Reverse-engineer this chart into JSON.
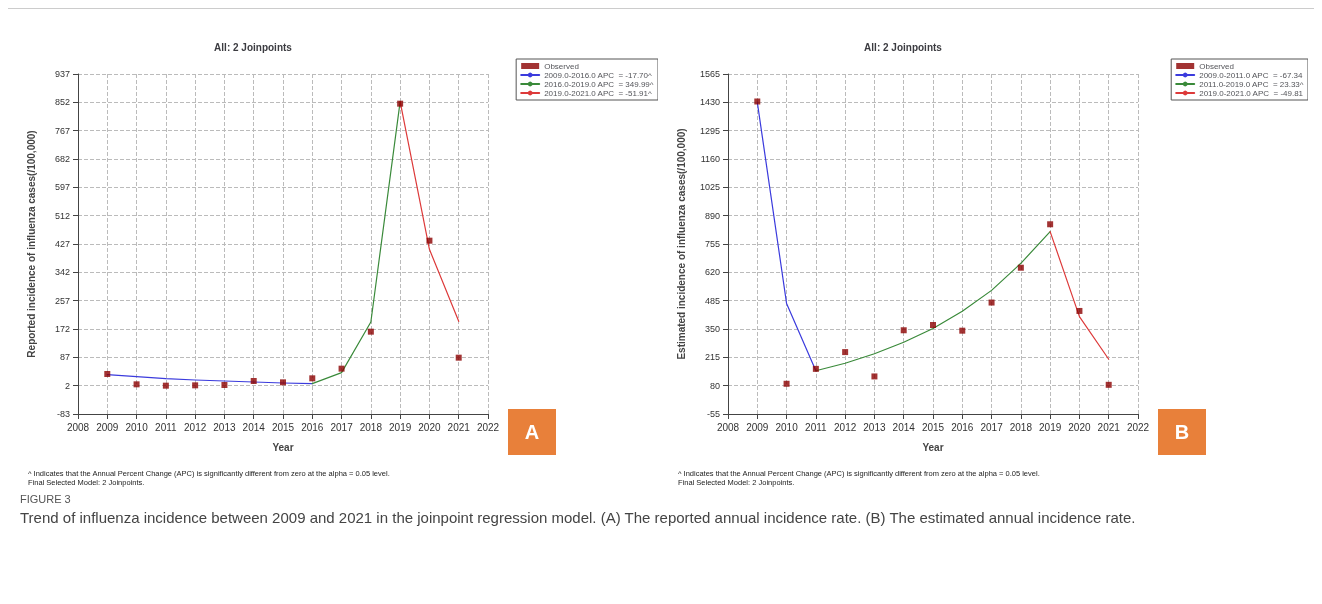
{
  "chart_data": [
    {
      "type": "line",
      "title": "All: 2 Joinpoints",
      "xlabel": "Year",
      "ylabel": "Reported incidence of influenza cases(/100,000)",
      "xlim": [
        2008,
        2022
      ],
      "xticks": [
        2008,
        2009,
        2010,
        2011,
        2012,
        2013,
        2014,
        2015,
        2016,
        2017,
        2018,
        2019,
        2020,
        2021,
        2022
      ],
      "ylim": [
        -83,
        937
      ],
      "yticks": [
        -83,
        2,
        87,
        172,
        257,
        342,
        427,
        512,
        597,
        682,
        767,
        852,
        937
      ],
      "grid": true,
      "legend": "top right",
      "series": [
        {
          "name": "Observed",
          "type": "scatter",
          "marker": "square",
          "color": "#8b0000",
          "x": [
            2009,
            2010,
            2011,
            2012,
            2013,
            2014,
            2015,
            2016,
            2017,
            2018,
            2019,
            2020,
            2021
          ],
          "values": [
            37,
            6,
            2,
            3,
            4,
            16,
            12,
            24,
            53,
            164,
            848,
            437,
            86
          ]
        },
        {
          "name": "2009.0-2016.0 APC  = -17.70^",
          "marker": "none",
          "color": "#3b3bdd",
          "x": [
            2009,
            2010,
            2011,
            2012,
            2013,
            2014,
            2015,
            2016
          ],
          "values": [
            35,
            29,
            23,
            19,
            16,
            13,
            10,
            8
          ]
        },
        {
          "name": "2016.0-2019.0 APC  = 349.99^",
          "marker": "none",
          "color": "#3a8a3a",
          "x": [
            2016,
            2017,
            2018,
            2019
          ],
          "values": [
            8,
            41,
            193,
            854
          ]
        },
        {
          "name": "2019.0-2021.0 APC  = -51.91^",
          "marker": "none",
          "color": "#dd3a3a",
          "x": [
            2019,
            2020,
            2021
          ],
          "values": [
            854,
            411,
            195
          ]
        }
      ],
      "annotations": [
        "A",
        "^ Indicates that the Annual Percent Change (APC) is significantly different from zero at the alpha = 0.05 level.",
        "Final Selected Model: 2 Joinpoints.",
        "FIGURE 3",
        "Trend of influenza incidence between 2009 and 2021 in the joinpoint regression model. (A) The reported annual incidence rate. (B) The estimated annual incidence rate."
      ]
    },
    {
      "type": "line",
      "title": "All: 2 Joinpoints",
      "xlabel": "Year",
      "ylabel": "Estimated incidence of influenza cases(/100,000)",
      "xlim": [
        2008,
        2022
      ],
      "xticks": [
        2008,
        2009,
        2010,
        2011,
        2012,
        2013,
        2014,
        2015,
        2016,
        2017,
        2018,
        2019,
        2020,
        2021,
        2022
      ],
      "ylim": [
        -55,
        1565
      ],
      "yticks": [
        -55,
        80,
        215,
        350,
        485,
        620,
        755,
        890,
        1025,
        1160,
        1295,
        1430,
        1565
      ],
      "grid": true,
      "legend": "top right",
      "series": [
        {
          "name": "Observed",
          "type": "scatter",
          "marker": "square",
          "color": "#8b0000",
          "x": [
            2009,
            2010,
            2011,
            2012,
            2013,
            2014,
            2015,
            2016,
            2017,
            2018,
            2019,
            2020,
            2021
          ],
          "values": [
            1434,
            89,
            160,
            240,
            124,
            344,
            369,
            342,
            476,
            642,
            849,
            436,
            84
          ]
        },
        {
          "name": "2009.0-2011.0 APC  = -67.34",
          "marker": "none",
          "color": "#3b3bdd",
          "x": [
            2009,
            2010,
            2011
          ],
          "values": [
            1431,
            472,
            151
          ]
        },
        {
          "name": "2011.0-2019.0 APC  = 23.33^",
          "marker": "none",
          "color": "#3a8a3a",
          "x": [
            2011,
            2012,
            2013,
            2014,
            2015,
            2016,
            2017,
            2018,
            2019
          ],
          "values": [
            151,
            187,
            232,
            287,
            352,
            435,
            534,
            663,
            814
          ]
        },
        {
          "name": "2019.0-2021.0 APC  = -49.81",
          "marker": "none",
          "color": "#dd3a3a",
          "x": [
            2019,
            2020,
            2021
          ],
          "values": [
            814,
            409,
            206
          ]
        }
      ],
      "annotations": [
        "B",
        "^ Indicates that the Annual Percent Change (APC) is significantly different from zero at the alpha = 0.05 level.",
        "Final Selected Model: 2 Joinpoints."
      ]
    }
  ]
}
